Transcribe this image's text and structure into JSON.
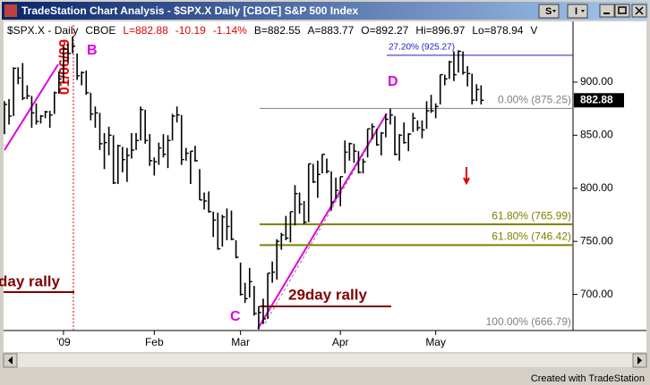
{
  "window": {
    "title": "TradeStation Chart Analysis - $SPX.X  Daily  [CBOE] S&P 500 Index",
    "buttons": [
      "S",
      "I"
    ],
    "footer": "Created with TradeStation"
  },
  "info": [
    "$SPX.X - Daily",
    "CBOE",
    "L=882.88",
    "-10.19",
    "-1.14%",
    "B=882.55",
    "A=883.77",
    "O=892.27",
    "Hi=896.97",
    "Lo=878.94",
    "V"
  ],
  "chart_data": {
    "type": "ohlc",
    "categories": [
      null,
      null,
      null,
      null,
      null,
      null,
      null,
      null,
      null,
      null,
      null,
      null,
      null,
      "'09",
      null,
      null,
      null,
      null,
      null,
      null,
      null,
      null,
      null,
      null,
      null,
      null,
      null,
      null,
      null,
      null,
      null,
      null,
      null,
      "Feb",
      null,
      null,
      null,
      null,
      null,
      null,
      null,
      null,
      null,
      null,
      null,
      null,
      null,
      null,
      null,
      null,
      null,
      null,
      "Mar",
      null,
      null,
      null,
      null,
      null,
      null,
      null,
      null,
      null,
      null,
      null,
      null,
      null,
      null,
      null,
      null,
      null,
      null,
      null,
      null,
      null,
      "Apr",
      null,
      null,
      null,
      null,
      null,
      null,
      null,
      null,
      null,
      null,
      null,
      null,
      null,
      null,
      null,
      null,
      null,
      null,
      null,
      null,
      "May",
      null,
      null,
      null,
      null,
      null,
      null,
      null,
      null,
      null,
      null
    ],
    "high": [
      882,
      884,
      914,
      914,
      918,
      897,
      887,
      880,
      869,
      873,
      873,
      891,
      910,
      934,
      936,
      943,
      927,
      910,
      911,
      890,
      877,
      871,
      852,
      858,
      850,
      841,
      839,
      838,
      852,
      852,
      877,
      874,
      851,
      829,
      843,
      851,
      850,
      870,
      877,
      869,
      838,
      835,
      840,
      818,
      796,
      797,
      778,
      777,
      775,
      781,
      779,
      751,
      730,
      711,
      725,
      708,
      689,
      696,
      720,
      731,
      752,
      758,
      774,
      778,
      803,
      796,
      788,
      823,
      823,
      826,
      832,
      828,
      816,
      810,
      811,
      845,
      843,
      842,
      835,
      828,
      856,
      861,
      856,
      853,
      870,
      875,
      868,
      851,
      862,
      852,
      871,
      864,
      864,
      882,
      888,
      880,
      907,
      907,
      920,
      929,
      930,
      929,
      915,
      908,
      898,
      896.97
    ],
    "low": [
      851,
      860,
      868,
      898,
      883,
      884,
      857,
      860,
      861,
      866,
      857,
      870,
      889,
      899,
      919,
      927,
      902,
      897,
      888,
      864,
      857,
      836,
      818,
      831,
      804,
      804,
      815,
      806,
      828,
      836,
      845,
      842,
      821,
      812,
      822,
      829,
      819,
      845,
      862,
      822,
      826,
      804,
      825,
      789,
      780,
      777,
      754,
      742,
      745,
      751,
      751,
      734,
      699,
      692,
      697,
      680,
      667,
      672,
      677,
      711,
      714,
      742,
      751,
      749,
      765,
      776,
      766,
      768,
      805,
      791,
      814,
      814,
      779,
      790,
      783,
      814,
      826,
      824,
      814,
      814,
      829,
      846,
      840,
      831,
      848,
      860,
      831,
      826,
      842,
      835,
      853,
      854,
      847,
      856,
      871,
      866,
      879,
      897,
      903,
      901,
      909,
      907,
      896,
      879,
      882,
      878.94
    ],
    "close": [
      879,
      868,
      913,
      904,
      885,
      887,
      871,
      863,
      868,
      872,
      869,
      890,
      903,
      931,
      927,
      934,
      906,
      909,
      890,
      870,
      871,
      842,
      843,
      850,
      805,
      840,
      827,
      831,
      836,
      845,
      874,
      845,
      826,
      825,
      838,
      832,
      845,
      868,
      869,
      827,
      833,
      835,
      826,
      789,
      788,
      778,
      770,
      743,
      773,
      764,
      752,
      735,
      700,
      696,
      712,
      682,
      683,
      677,
      720,
      721,
      750,
      756,
      753,
      778,
      795,
      785,
      768,
      823,
      806,
      813,
      832,
      816,
      787,
      798,
      811,
      834,
      842,
      835,
      815,
      825,
      856,
      858,
      841,
      852,
      865,
      869,
      832,
      850,
      843,
      851,
      866,
      857,
      855,
      873,
      873,
      877,
      907,
      903,
      919,
      907,
      929,
      909,
      908,
      883,
      893,
      882.88
    ],
    "color": "#000000",
    "last_label": "882.88",
    "ylim": [
      666,
      942
    ],
    "yticks": [
      {
        "value": 700,
        "label": "700.00"
      },
      {
        "value": 750,
        "label": "750.00"
      },
      {
        "value": 800,
        "label": "800.00"
      },
      {
        "value": 850,
        "label": "850.00"
      },
      {
        "value": 900,
        "label": "900.00"
      }
    ],
    "levels": [
      {
        "value": 925.27,
        "label": "27.20% (925.27)",
        "color": "#2020c0"
      },
      {
        "value": 875.25,
        "label": "0.00% (875.25)",
        "color": "#808080"
      },
      {
        "value": 765.99,
        "label": "61.80% (765.99)",
        "color": "#808000"
      },
      {
        "value": 746.42,
        "label": "61.80% (746.42)",
        "color": "#808000"
      },
      {
        "value": 666.79,
        "label": "100.00% (666.79)",
        "color": "#808080"
      }
    ],
    "annotations": {
      "points": [
        "B",
        "C",
        "D"
      ],
      "date": "01/06/09",
      "rallies": [
        "day rally",
        "29day rally"
      ]
    }
  }
}
